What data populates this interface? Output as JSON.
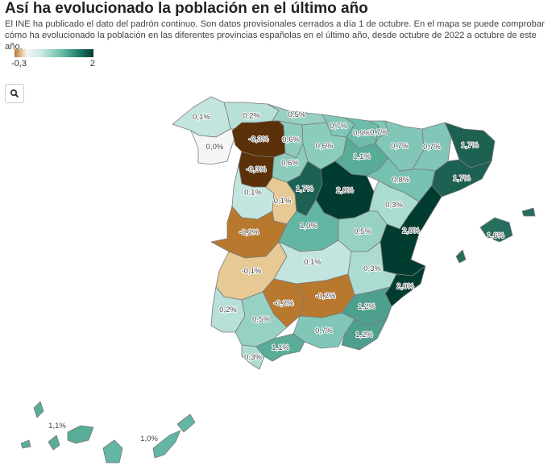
{
  "title": "Así ha evolucionado la población en el último año",
  "subtitle": "El INE ha publicado el dato del padrón continuo. Son datos provisionales cerrados a día 1 de octubre. En el mapa se puede comprobar cómo ha evolucionado la población en las diferentes provincias españolas en el último año, desde octubre de 2022 a octubre de este año.",
  "legend": {
    "min_label": "-0,3",
    "max_label": "2",
    "min": -0.3,
    "max": 2
  },
  "colors": {
    "neg_dark": "#5a3108",
    "neg_mid": "#b8782e",
    "neg_light": "#e6c994",
    "neutral": "#f5f5f5",
    "pos_light": "#c7e9e2",
    "pos_dark": "#003c30"
  },
  "search": {
    "icon": "search-icon"
  },
  "provinces": [
    {
      "id": "coruna",
      "label": "0,1%",
      "value": 0.1
    },
    {
      "id": "lugo",
      "label": "0,2%",
      "value": 0.2
    },
    {
      "id": "asturias",
      "label": "0,5%",
      "value": 0.5
    },
    {
      "id": "cantabria",
      "label": "0,7%",
      "value": 0.7
    },
    {
      "id": "bizkaia",
      "label": "0,9%",
      "value": 0.9
    },
    {
      "id": "gipuzkoa",
      "label": "0,7%",
      "value": 0.7
    },
    {
      "id": "navarra",
      "label": "0,7%",
      "value": 0.7
    },
    {
      "id": "huesca",
      "label": "0,7%",
      "value": 0.7
    },
    {
      "id": "girona",
      "label": "1,7%",
      "value": 1.7
    },
    {
      "id": "pontevedra",
      "label": "0,0%",
      "value": 0.0
    },
    {
      "id": "leon",
      "label": "-0,3%",
      "value": -0.3
    },
    {
      "id": "palencia",
      "label": "0,6%",
      "value": 0.6
    },
    {
      "id": "burgos",
      "label": "0,6%",
      "value": 0.6
    },
    {
      "id": "zamora",
      "label": "-0,3%",
      "value": -0.3
    },
    {
      "id": "valladolid",
      "label": "0,6%",
      "value": 0.6
    },
    {
      "id": "rioja",
      "label": "1,1%",
      "value": 1.1
    },
    {
      "id": "zaragoza",
      "label": "0,8%",
      "value": 0.8
    },
    {
      "id": "barcelona",
      "label": "1,7%",
      "value": 1.7
    },
    {
      "id": "salamanca",
      "label": "0,1%",
      "value": 0.1
    },
    {
      "id": "avila",
      "label": "-0,1%",
      "value": -0.1
    },
    {
      "id": "segovia",
      "label": "1,7%",
      "value": 1.7
    },
    {
      "id": "madrid",
      "label": "2,0%",
      "value": 2.0
    },
    {
      "id": "teruel",
      "label": "0,3%",
      "value": 0.3
    },
    {
      "id": "caceres",
      "label": "-0,2%",
      "value": -0.2
    },
    {
      "id": "toledo",
      "label": "1,0%",
      "value": 1.0
    },
    {
      "id": "cuenca",
      "label": "0,5%",
      "value": 0.5
    },
    {
      "id": "valencia",
      "label": "2,0%",
      "value": 2.0
    },
    {
      "id": "baleares",
      "label": "1,6%",
      "value": 1.6
    },
    {
      "id": "badajoz",
      "label": "-0,1%",
      "value": -0.1
    },
    {
      "id": "creal",
      "label": "0,1%",
      "value": 0.1
    },
    {
      "id": "albacete",
      "label": "0,3%",
      "value": 0.3
    },
    {
      "id": "alicante",
      "label": "2,0%",
      "value": 2.0
    },
    {
      "id": "cordoba",
      "label": "-0,2%",
      "value": -0.2
    },
    {
      "id": "jaen",
      "label": "-0,2%",
      "value": -0.2
    },
    {
      "id": "murcia",
      "label": "1,2%",
      "value": 1.2
    },
    {
      "id": "huelva",
      "label": "0,2%",
      "value": 0.2
    },
    {
      "id": "sevilla",
      "label": "0,5%",
      "value": 0.5
    },
    {
      "id": "granada",
      "label": "0,7%",
      "value": 0.7
    },
    {
      "id": "almeria",
      "label": "1,2%",
      "value": 1.2
    },
    {
      "id": "cadiz",
      "label": "0,3%",
      "value": 0.3
    },
    {
      "id": "malaga",
      "label": "1,1%",
      "value": 1.1
    },
    {
      "id": "tenerife",
      "label": "1,1%",
      "value": 1.1
    },
    {
      "id": "laspalmas",
      "label": "1,0%",
      "value": 1.0
    }
  ]
}
